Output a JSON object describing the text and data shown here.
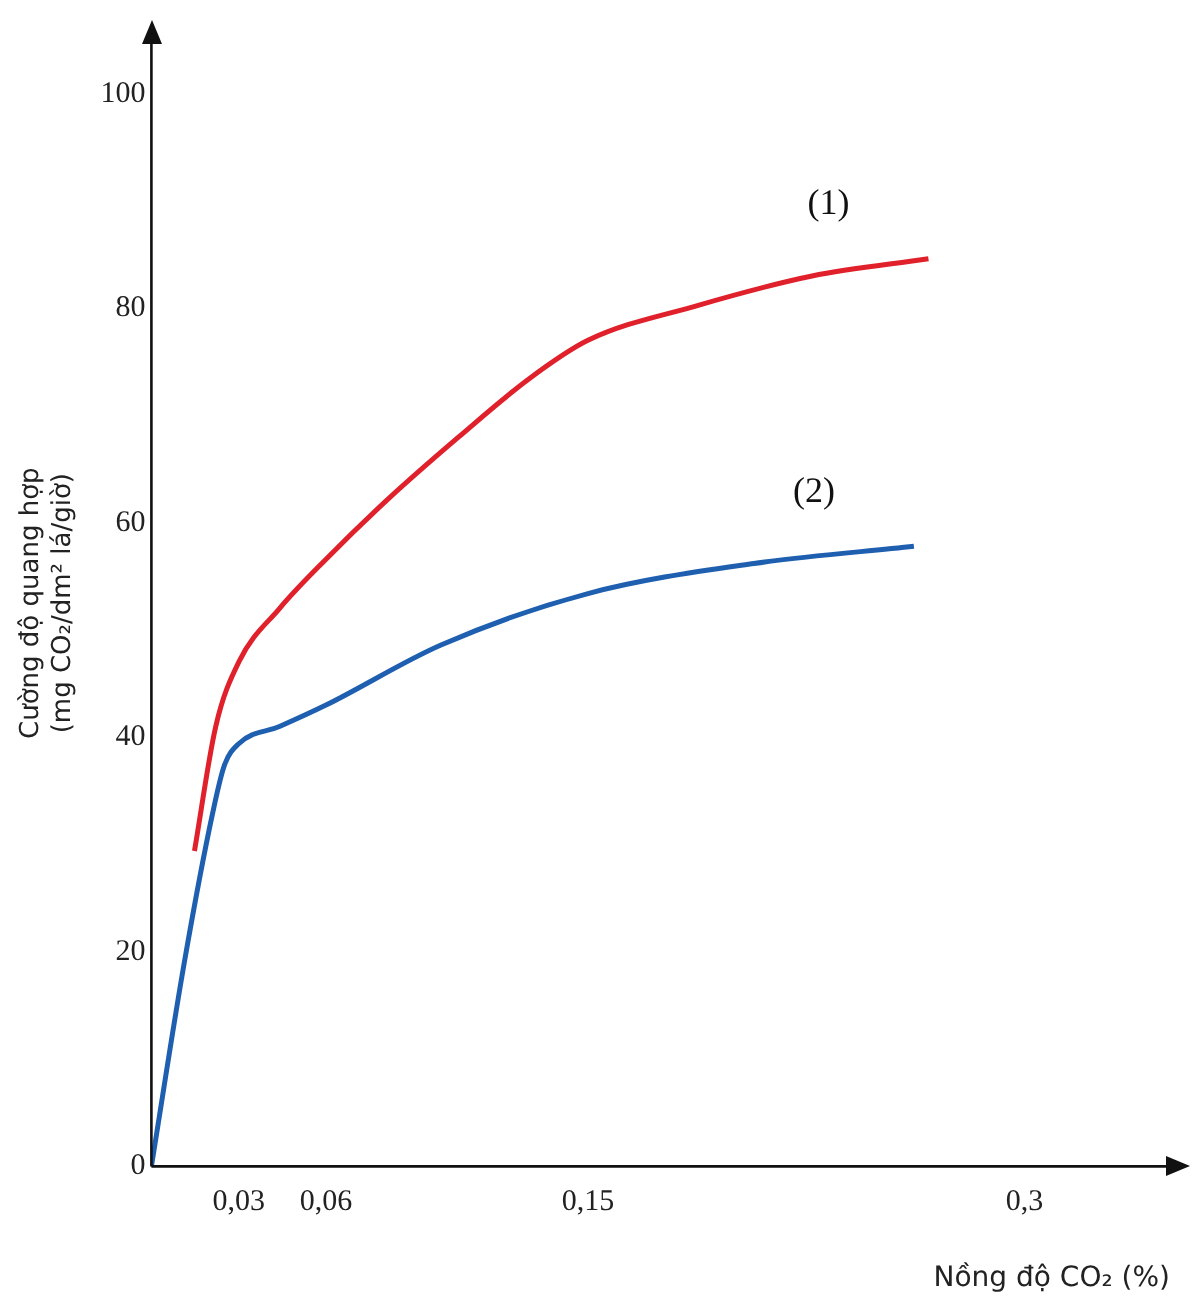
{
  "chart_data": {
    "type": "line",
    "xlabel": "Nồng độ CO₂ (%)",
    "ylabel": [
      "Cường độ quang hợp",
      "(mg CO₂/dm² lá/giờ)"
    ],
    "xlim": [
      0,
      0.35
    ],
    "ylim": [
      0,
      105
    ],
    "xticks": [
      {
        "value": 0.03,
        "label": "0,03"
      },
      {
        "value": 0.06,
        "label": "0,06"
      },
      {
        "value": 0.15,
        "label": "0,15"
      },
      {
        "value": 0.3,
        "label": "0,3"
      }
    ],
    "yticks": [
      0,
      20,
      40,
      60,
      80,
      100
    ],
    "grid": false,
    "legend": false,
    "marker": "none",
    "line_style": "solid",
    "series": [
      {
        "name": "(1)",
        "color": "#e0202a",
        "x": [
          0.0148,
          0.0221,
          0.03,
          0.044,
          0.06,
          0.0813,
          0.1056,
          0.1297,
          0.15,
          0.187,
          0.227,
          0.267
        ],
        "values": [
          29.4,
          41,
          47,
          52,
          56.6,
          62.2,
          68,
          73.4,
          77,
          80.2,
          83,
          84.6
        ]
      },
      {
        "name": "(2)",
        "color": "#1f5fb0",
        "x": [
          0,
          0.0113,
          0.0211,
          0.0251,
          0.03,
          0.044,
          0.06,
          0.0995,
          0.15,
          0.207,
          0.262
        ],
        "values": [
          0,
          19,
          33,
          37.4,
          39.4,
          41,
          43,
          48.6,
          53.4,
          56.2,
          57.8
        ]
      }
    ]
  }
}
